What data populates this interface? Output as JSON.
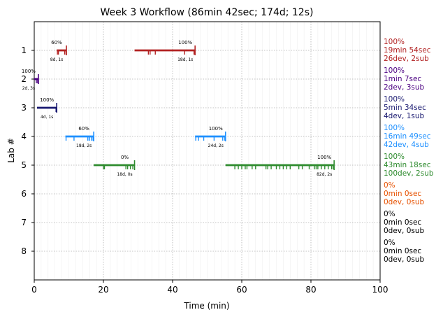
{
  "chart_data": {
    "type": "timeline",
    "title": "Week 3 Workflow (86min 42sec; 174d; 12s)",
    "xlabel": "Time (min)",
    "ylabel": "Lab #",
    "xlim": [
      0,
      100
    ],
    "x_ticks": [
      0,
      20,
      40,
      60,
      80,
      100
    ],
    "y_categories": [
      "1",
      "2",
      "3",
      "4",
      "5",
      "6",
      "7",
      "8"
    ],
    "grid": true,
    "series": [
      {
        "lab": "1",
        "color": "#b22222",
        "segments": [
          {
            "start": 6.5,
            "end": 9.3,
            "pct": "60%",
            "sub": "8d, 1s",
            "ticks": [
              6.7,
              7.0,
              8.8,
              9.2
            ]
          },
          {
            "start": 29.0,
            "end": 46.5,
            "pct": "100%",
            "sub": "18d, 1s",
            "ticks": [
              33.0,
              33.5,
              35.0,
              43.5,
              46.2,
              46.4
            ]
          }
        ],
        "summary": [
          "100%",
          "19min 54sec",
          "26dev, 2sub"
        ]
      },
      {
        "lab": "2",
        "color": "#4b0082",
        "segments": [
          {
            "start": 0.0,
            "end": 1.2,
            "pct": "100%",
            "sub": "2d, 3s",
            "ticks": [
              0.6,
              1.0
            ]
          }
        ],
        "summary": [
          "100%",
          "1min 7sec",
          "2dev, 3sub"
        ]
      },
      {
        "lab": "3",
        "color": "#191970",
        "segments": [
          {
            "start": 0.8,
            "end": 6.5,
            "pct": "100%",
            "sub": "4d, 1s",
            "ticks": [
              6.3,
              6.5
            ]
          }
        ],
        "summary": [
          "100%",
          "5min 34sec",
          "4dev, 1sub"
        ]
      },
      {
        "lab": "4",
        "color": "#1e90ff",
        "segments": [
          {
            "start": 9.0,
            "end": 17.2,
            "pct": "60%",
            "sub": "18d, 2s",
            "ticks": [
              9.2,
              11.5,
              15.5,
              16.0,
              16.5,
              17.0
            ]
          },
          {
            "start": 46.5,
            "end": 55.3,
            "pct": "100%",
            "sub": "24d, 2s",
            "ticks": [
              46.7,
              47.5,
              49.0,
              52.0,
              54.5,
              55.1
            ]
          }
        ],
        "summary": [
          "100%",
          "16min 49sec",
          "42dev, 4sub"
        ]
      },
      {
        "lab": "5",
        "color": "#2e8b2e",
        "segments": [
          {
            "start": 17.2,
            "end": 29.0,
            "pct": "0%",
            "sub": "18d, 0s",
            "ticks": [
              20.0,
              20.3,
              26.5,
              27.0,
              27.8,
              28.5
            ]
          },
          {
            "start": 55.3,
            "end": 86.7,
            "pct": "100%",
            "sub": "82d, 2s",
            "ticks": [
              58.0,
              59.0,
              60.0,
              61.0,
              61.5,
              63.0,
              64.0,
              67.0,
              67.5,
              68.5,
              70.0,
              71.0,
              72.0,
              73.0,
              74.0,
              76.5,
              77.5,
              79.5,
              81.0,
              81.5,
              82.0,
              83.0,
              84.0,
              85.0,
              86.0,
              86.5
            ]
          }
        ],
        "summary": [
          "100%",
          "43min 18sec",
          "100dev, 2sub"
        ]
      },
      {
        "lab": "6",
        "color": "#e65100",
        "segments": [],
        "summary": [
          "0%",
          "0min 0sec",
          "0dev, 0sub"
        ]
      },
      {
        "lab": "7",
        "color": "#000000",
        "segments": [],
        "summary": [
          "0%",
          "0min 0sec",
          "0dev, 0sub"
        ]
      },
      {
        "lab": "8",
        "color": "#000000",
        "segments": [],
        "summary": [
          "0%",
          "0min 0sec",
          "0dev, 0sub"
        ]
      }
    ]
  }
}
